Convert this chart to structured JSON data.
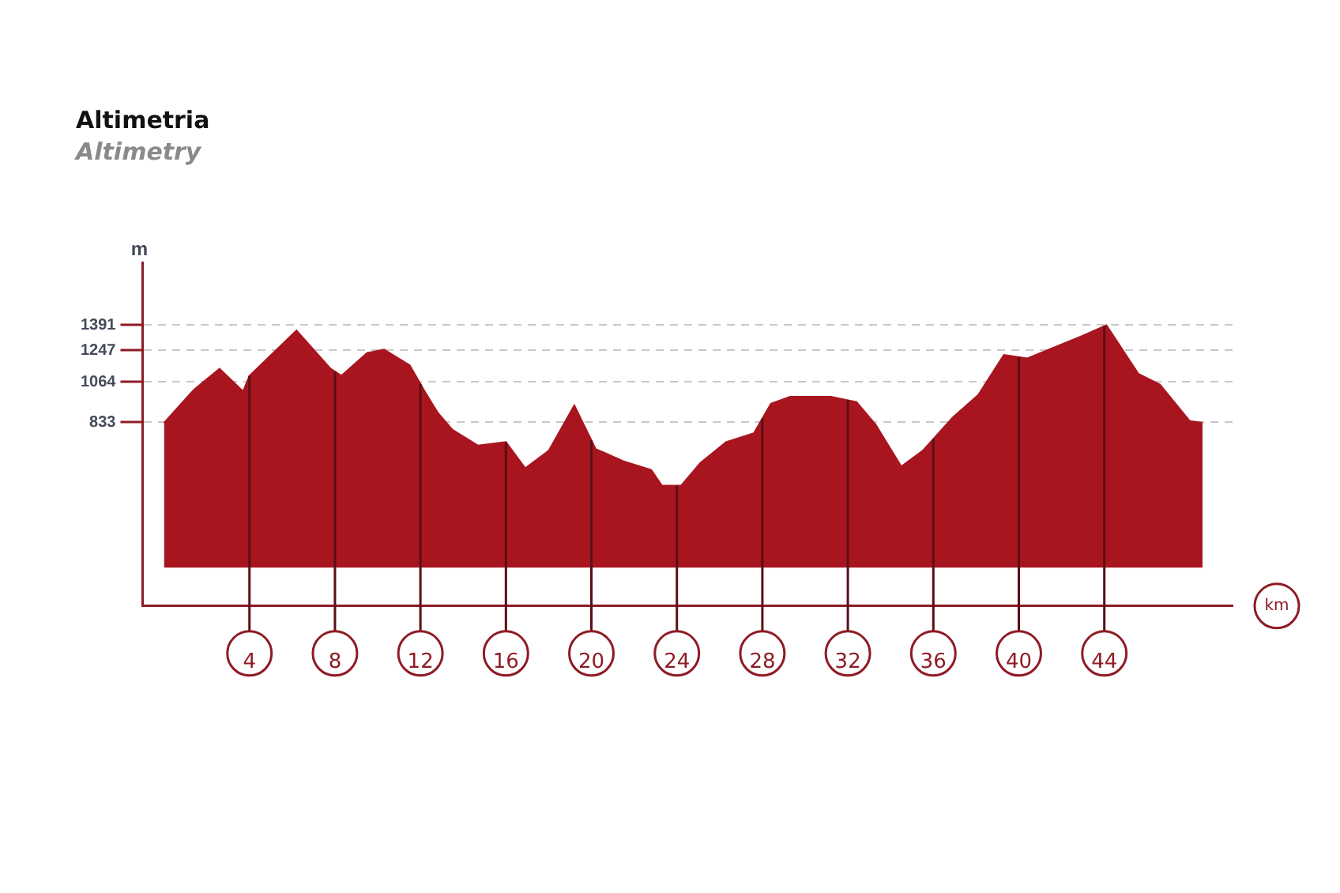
{
  "chart_data": {
    "type": "area",
    "title": "Altimetria",
    "subtitle": "Altimetry",
    "xlabel": "km",
    "ylabel": "m",
    "series": [
      {
        "color": "#a8151f",
        "x": [
          0,
          1.4,
          2.6,
          3.7,
          4.0,
          6.2,
          7.8,
          8.3,
          9.5,
          10.3,
          11.5,
          12.2,
          12.8,
          13.5,
          14.7,
          16.0,
          16.9,
          18.0,
          19.2,
          20.2,
          21.5,
          22.8,
          23.3,
          24.2,
          25.1,
          26.3,
          27.6,
          28.4,
          29.3,
          31.2,
          32.4,
          33.3,
          34.5,
          35.5,
          36.9,
          38.1,
          39.3,
          40.4,
          41.6,
          43.0,
          44.1,
          45.6,
          46.6,
          48.0,
          48.6
        ],
        "values": [
          830,
          1020,
          1140,
          1010,
          1100,
          1360,
          1140,
          1100,
          1230,
          1250,
          1160,
          1010,
          890,
          790,
          700,
          720,
          570,
          670,
          930,
          680,
          610,
          560,
          470,
          470,
          600,
          720,
          770,
          940,
          980,
          980,
          950,
          820,
          580,
          670,
          860,
          990,
          1220,
          1200,
          1260,
          1330,
          1390,
          1110,
          1050,
          840,
          830
        ]
      }
    ],
    "xlim": [
      -1,
      50
    ],
    "xticks": [
      4,
      8,
      12,
      16,
      20,
      24,
      28,
      32,
      36,
      40,
      44
    ],
    "ylim": [
      -220,
      1750
    ],
    "yticks": [
      833,
      1064,
      1247,
      1391
    ],
    "ref_lines": [
      {
        "axis": "x",
        "value": 4,
        "color": "#5a0f15"
      },
      {
        "axis": "x",
        "value": 8,
        "color": "#5a0f15"
      },
      {
        "axis": "x",
        "value": 12,
        "color": "#5a0f15"
      },
      {
        "axis": "x",
        "value": 16,
        "color": "#5a0f15"
      },
      {
        "axis": "x",
        "value": 20,
        "color": "#5a0f15"
      },
      {
        "axis": "x",
        "value": 24,
        "color": "#5a0f15"
      },
      {
        "axis": "x",
        "value": 28,
        "color": "#5a0f15"
      },
      {
        "axis": "x",
        "value": 32,
        "color": "#5a0f15"
      },
      {
        "axis": "x",
        "value": 36,
        "color": "#5a0f15"
      },
      {
        "axis": "x",
        "value": 40,
        "color": "#5a0f15"
      },
      {
        "axis": "x",
        "value": 44,
        "color": "#5a0f15"
      }
    ],
    "grid": "y",
    "legend": false
  }
}
